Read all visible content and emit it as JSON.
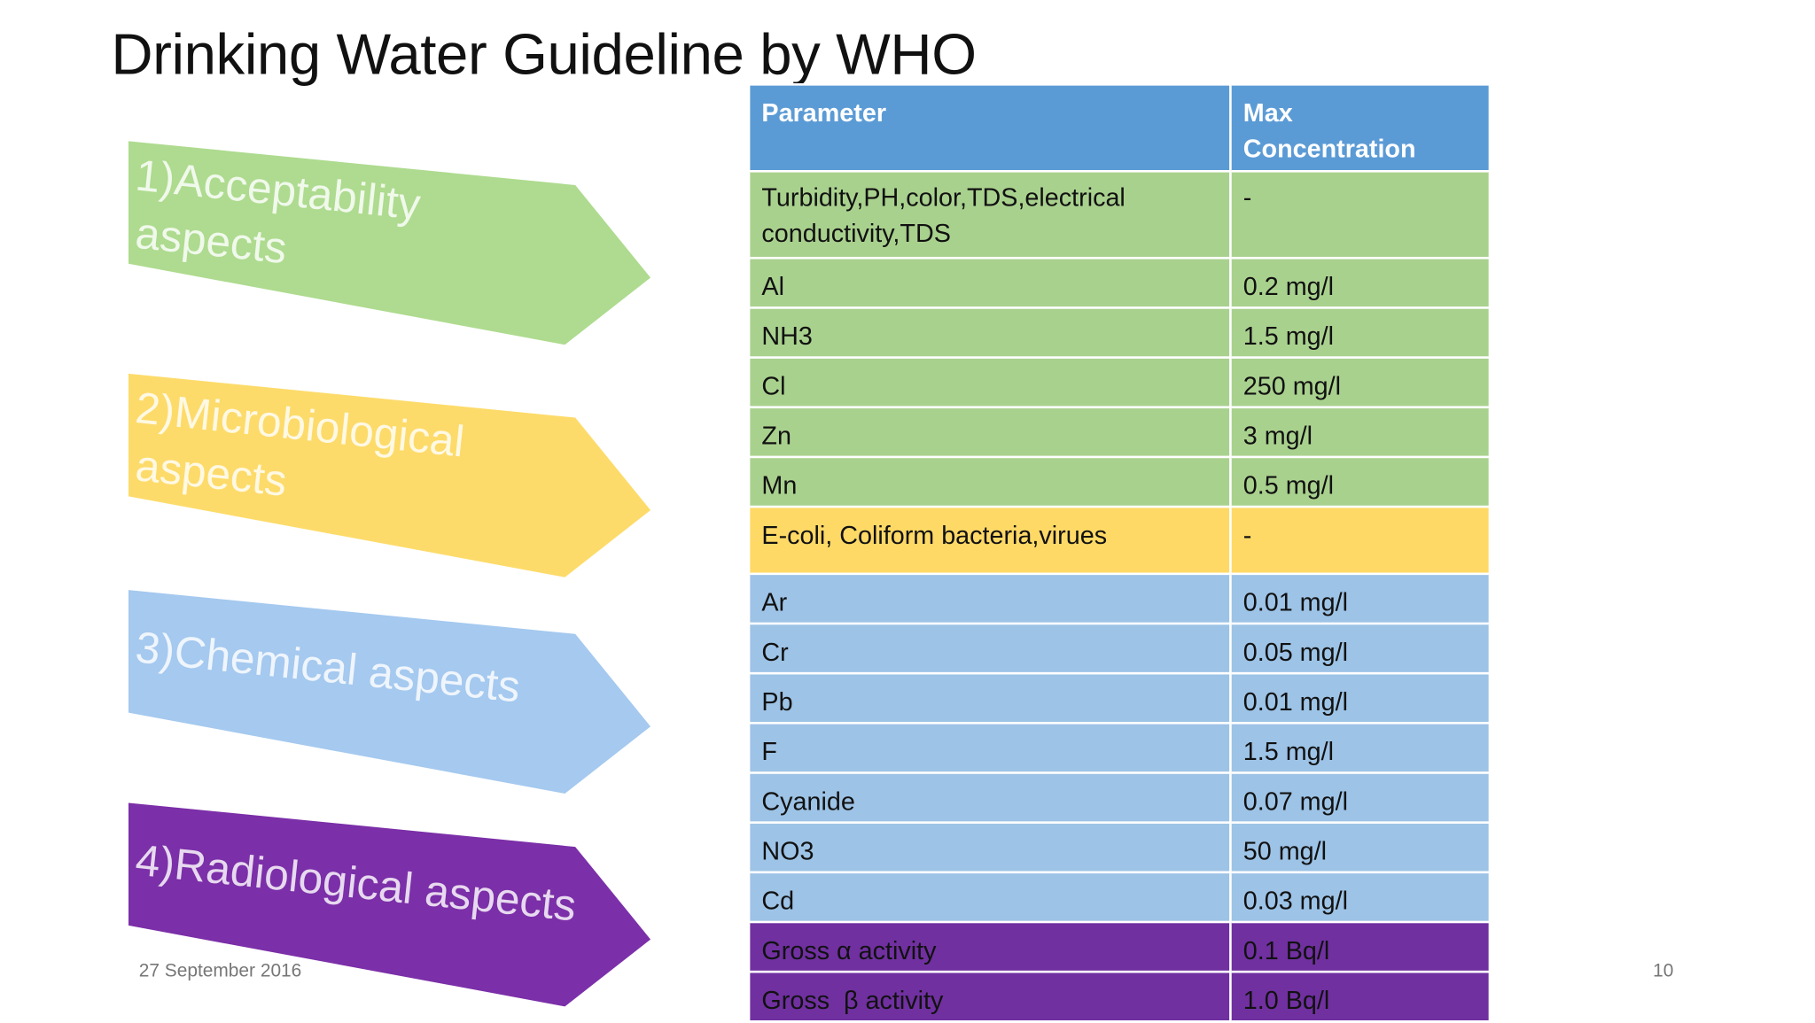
{
  "title": "Drinking Water Guideline by WHO",
  "arrows": [
    {
      "lines": [
        "1)Acceptability",
        "aspects"
      ],
      "color": "#aedb8f"
    },
    {
      "lines": [
        "2)Microbiological",
        "aspects"
      ],
      "color": "#fddb6a"
    },
    {
      "lines": [
        "3)Chemical aspects"
      ],
      "color": "#a5c9ef"
    },
    {
      "lines": [
        "4)Radiological aspects"
      ],
      "color": "#7b2fa8"
    }
  ],
  "table": {
    "header": [
      "Parameter",
      "Max\nConcentration"
    ],
    "rows": [
      {
        "cells": [
          "Turbidity,PH,color,TDS,electrical\nconductivity,TDS",
          "-"
        ],
        "color": "#a9d18e"
      },
      {
        "cells": [
          "Al",
          "0.2 mg/l"
        ],
        "color": "#a9d18e"
      },
      {
        "cells": [
          "NH3",
          "1.5 mg/l"
        ],
        "color": "#a9d18e"
      },
      {
        "cells": [
          "Cl",
          "250 mg/l"
        ],
        "color": "#a9d18e"
      },
      {
        "cells": [
          "Zn",
          "3 mg/l"
        ],
        "color": "#a9d18e"
      },
      {
        "cells": [
          "Mn",
          "0.5 mg/l"
        ],
        "color": "#a9d18e"
      },
      {
        "cells": [
          "E-coli, Coliform bacteria,virues",
          "-"
        ],
        "color": "#ffd966"
      },
      {
        "cells": [
          "Ar",
          "0.01 mg/l"
        ],
        "color": "#9dc3e6"
      },
      {
        "cells": [
          "Cr",
          "0.05 mg/l"
        ],
        "color": "#9dc3e6"
      },
      {
        "cells": [
          "Pb",
          "0.01 mg/l"
        ],
        "color": "#9dc3e6"
      },
      {
        "cells": [
          "F",
          "1.5 mg/l"
        ],
        "color": "#9dc3e6"
      },
      {
        "cells": [
          "Cyanide",
          "0.07 mg/l"
        ],
        "color": "#9dc3e6"
      },
      {
        "cells": [
          "NO3",
          "50 mg/l"
        ],
        "color": "#9dc3e6"
      },
      {
        "cells": [
          "Cd",
          "0.03 mg/l"
        ],
        "color": "#9dc3e6"
      },
      {
        "cells": [
          "Gross α activity",
          "0.1 Bq/l"
        ],
        "color": "#7030a0"
      },
      {
        "cells": [
          "Gross  β activity",
          "1.0 Bq/l"
        ],
        "color": "#7030a0"
      }
    ]
  },
  "footer": {
    "date": "27 September 2016",
    "page": "10"
  }
}
